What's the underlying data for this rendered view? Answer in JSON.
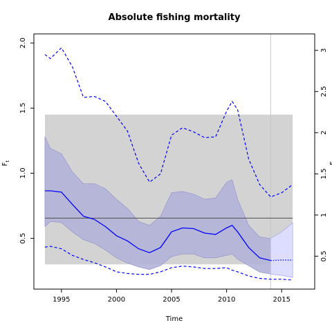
{
  "chart_data": {
    "type": "line",
    "title": "Absolute fishing mortality",
    "xlabel": "Time",
    "ylabel": "F",
    "ylabel_sub": "t",
    "right_ylabel": "F",
    "xlim": [
      1992.5,
      2018.0
    ],
    "ylim": [
      0.11,
      2.07
    ],
    "right_ylim": [
      0.1,
      3.2
    ],
    "x_ticks": [
      1995,
      2000,
      2005,
      2010,
      2015
    ],
    "y_ticks": [
      0.5,
      1.0,
      1.5,
      2.0
    ],
    "y_tick_labels": [
      "0.5",
      "1.0",
      "1.5",
      "2.0"
    ],
    "right_y_ticks": [
      0.5,
      1.0,
      1.5,
      2.0,
      2.5,
      3.0
    ],
    "right_y_tick_labels": [
      "0.5",
      "1",
      "1.5",
      "2",
      "2.5",
      "3"
    ],
    "grid": false,
    "colors": {
      "estimate": "#0000ff",
      "ci_band": "#b2b2d8",
      "forecast_band": "#ddddff",
      "reference_band": "#d3d3d3",
      "reference_line": "#4d4d4d",
      "vertical_marker": "#c8c8c8"
    },
    "reference_band": {
      "x_range": [
        1993.5,
        2016.0
      ],
      "y_range": [
        0.3,
        1.45
      ]
    },
    "reference_line": {
      "y": 0.655
    },
    "vertical_marker": {
      "x": 2014.0
    },
    "series": [
      {
        "role": "estimate",
        "style": "solid",
        "x": [
          1993.5,
          1994.0,
          1995.0,
          1996.0,
          1997.0,
          1998.0,
          1999.0,
          2000.0,
          2001.0,
          2002.0,
          2003.0,
          2004.0,
          2005.0,
          2006.0,
          2007.0,
          2008.0,
          2009.0,
          2010.0,
          2010.5,
          2011.0,
          2012.0,
          2013.0,
          2014.0
        ],
        "y": [
          0.865,
          0.865,
          0.855,
          0.76,
          0.67,
          0.645,
          0.59,
          0.52,
          0.48,
          0.42,
          0.39,
          0.43,
          0.55,
          0.58,
          0.575,
          0.54,
          0.53,
          0.58,
          0.6,
          0.55,
          0.43,
          0.35,
          0.33
        ]
      },
      {
        "role": "estimate forecast",
        "style": "dotted",
        "x": [
          2014.0,
          2015.0,
          2016.0
        ],
        "y": [
          0.33,
          0.333,
          0.333
        ]
      },
      {
        "role": "ci lower",
        "style": "band",
        "x": [
          1993.5,
          1994.0,
          1995.0,
          1996.0,
          1997.0,
          1998.0,
          1999.0,
          2000.0,
          2001.0,
          2002.0,
          2003.0,
          2004.0,
          2005.0,
          2006.0,
          2007.0,
          2008.0,
          2009.0,
          2010.0,
          2010.5,
          2011.0,
          2012.0,
          2013.0,
          2014.0
        ],
        "y": [
          0.59,
          0.63,
          0.62,
          0.55,
          0.49,
          0.46,
          0.41,
          0.35,
          0.31,
          0.28,
          0.26,
          0.29,
          0.36,
          0.38,
          0.38,
          0.35,
          0.35,
          0.37,
          0.38,
          0.34,
          0.29,
          0.24,
          0.225
        ]
      },
      {
        "role": "ci upper",
        "style": "band",
        "x": [
          1993.5,
          1994.0,
          1995.0,
          1996.0,
          1997.0,
          1998.0,
          1999.0,
          2000.0,
          2001.0,
          2002.0,
          2003.0,
          2004.0,
          2005.0,
          2006.0,
          2007.0,
          2008.0,
          2009.0,
          2010.0,
          2010.5,
          2011.0,
          2012.0,
          2013.0,
          2014.0
        ],
        "y": [
          1.28,
          1.19,
          1.15,
          1.01,
          0.92,
          0.92,
          0.88,
          0.8,
          0.73,
          0.63,
          0.6,
          0.67,
          0.85,
          0.86,
          0.84,
          0.8,
          0.81,
          0.93,
          0.95,
          0.8,
          0.6,
          0.51,
          0.5
        ]
      },
      {
        "role": "ci forecast lower",
        "style": "band",
        "x": [
          2014.0,
          2015.0,
          2016.0
        ],
        "y": [
          0.225,
          0.215,
          0.2
        ]
      },
      {
        "role": "ci forecast upper",
        "style": "band",
        "x": [
          2014.0,
          2015.0,
          2016.0
        ],
        "y": [
          0.5,
          0.55,
          0.62
        ]
      },
      {
        "role": "relative upper",
        "axis": "right",
        "style": "dashed",
        "x": [
          1993.5,
          1994.0,
          1995.0,
          1996.0,
          1997.0,
          1998.0,
          1999.0,
          2000.0,
          2001.0,
          2002.0,
          2003.0,
          2004.0,
          2005.0,
          2006.0,
          2007.0,
          2008.0,
          2009.0,
          2010.0,
          2010.5,
          2011.0,
          2012.0,
          2013.0,
          2014.0,
          2015.0,
          2016.0
        ],
        "y": [
          2.95,
          2.9,
          3.03,
          2.8,
          2.43,
          2.44,
          2.38,
          2.2,
          2.02,
          1.63,
          1.4,
          1.5,
          1.97,
          2.06,
          2.01,
          1.94,
          1.95,
          2.26,
          2.38,
          2.28,
          1.68,
          1.37,
          1.22,
          1.27,
          1.37
        ]
      },
      {
        "role": "relative lower",
        "axis": "right",
        "style": "dashed",
        "x": [
          1993.5,
          1994.0,
          1995.0,
          1996.0,
          1997.0,
          1998.0,
          1999.0,
          2000.0,
          2001.0,
          2002.0,
          2003.0,
          2004.0,
          2005.0,
          2006.0,
          2007.0,
          2008.0,
          2009.0,
          2010.0,
          2010.5,
          2011.0,
          2012.0,
          2013.0,
          2014.0,
          2015.0,
          2016.0
        ],
        "y": [
          0.61,
          0.62,
          0.59,
          0.51,
          0.46,
          0.42,
          0.37,
          0.31,
          0.29,
          0.28,
          0.28,
          0.31,
          0.36,
          0.38,
          0.37,
          0.35,
          0.35,
          0.36,
          0.33,
          0.31,
          0.26,
          0.23,
          0.22,
          0.22,
          0.21
        ]
      }
    ]
  }
}
